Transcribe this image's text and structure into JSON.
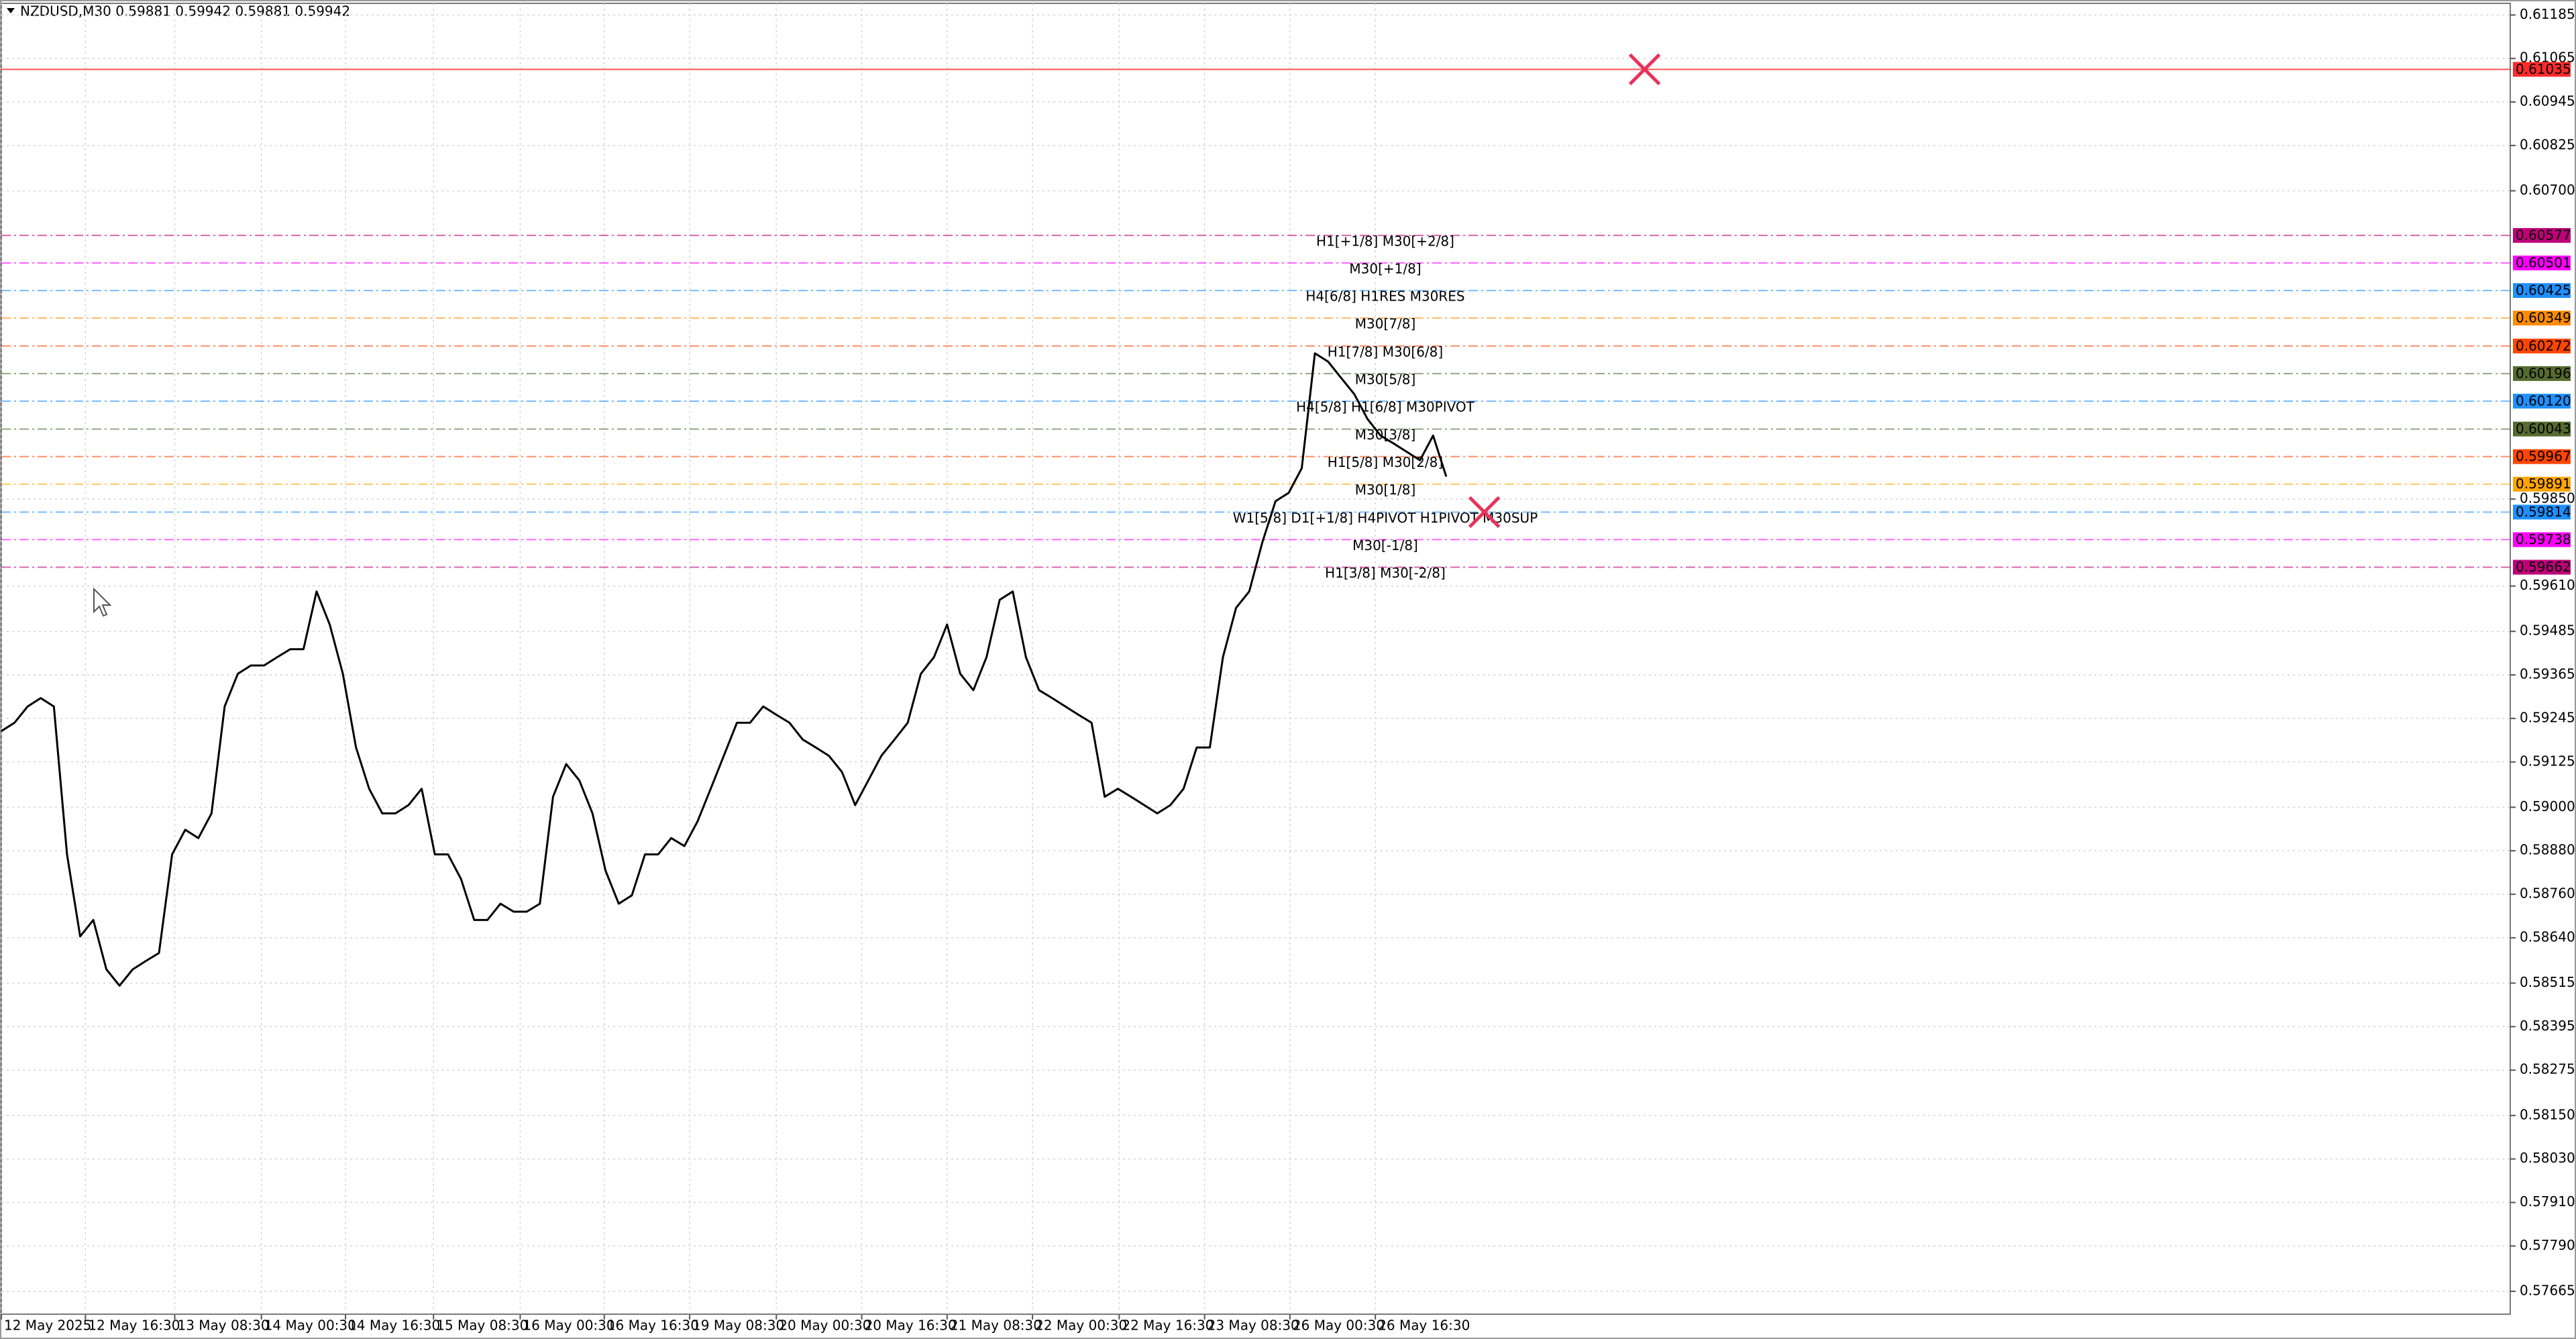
{
  "chart_data": {
    "type": "line",
    "title": "NZDUSD,M30  0.59881 0.59942 0.59881 0.59942",
    "xlim": [
      0,
      191
    ],
    "ylim": [
      0.57602,
      0.61217
    ],
    "grid": true,
    "xticks": [
      {
        "value": 0,
        "label": "12 May 2025"
      },
      {
        "value": 6.4,
        "label": "12 May 16:30"
      },
      {
        "value": 13.2,
        "label": "13 May 08:30"
      },
      {
        "value": 19.8,
        "label": "14 May 00:30"
      },
      {
        "value": 26.2,
        "label": "14 May 16:30"
      },
      {
        "value": 32.9,
        "label": "15 May 08:30"
      },
      {
        "value": 39.5,
        "label": "16 May 00:30"
      },
      {
        "value": 45.9,
        "label": "16 May 16:30"
      },
      {
        "value": 52.4,
        "label": "19 May 08:30"
      },
      {
        "value": 59,
        "label": "20 May 00:30"
      },
      {
        "value": 65.5,
        "label": "20 May 16:30"
      },
      {
        "value": 72,
        "label": "21 May 08:30"
      },
      {
        "value": 78.5,
        "label": "22 May 00:30"
      },
      {
        "value": 85.1,
        "label": "22 May 16:30"
      },
      {
        "value": 91.6,
        "label": "23 May 08:30"
      },
      {
        "value": 98.1,
        "label": "26 May 00:30"
      },
      {
        "value": 104.6,
        "label": "26 May 16:30"
      }
    ],
    "yticks": [
      {
        "value": 0.61185,
        "label": "0.61185"
      },
      {
        "value": 0.61065,
        "label": "0.61065"
      },
      {
        "value": 0.60945,
        "label": "0.60945"
      },
      {
        "value": 0.60825,
        "label": "0.60825"
      },
      {
        "value": 0.607,
        "label": "0.60700"
      },
      {
        "value": 0.5985,
        "label": "0.59850"
      },
      {
        "value": 0.5961,
        "label": "0.59610"
      },
      {
        "value": 0.59485,
        "label": "0.59485"
      },
      {
        "value": 0.59365,
        "label": "0.59365"
      },
      {
        "value": 0.59245,
        "label": "0.59245"
      },
      {
        "value": 0.59125,
        "label": "0.59125"
      },
      {
        "value": 0.59,
        "label": "0.59000"
      },
      {
        "value": 0.5888,
        "label": "0.58880"
      },
      {
        "value": 0.5876,
        "label": "0.58760"
      },
      {
        "value": 0.5864,
        "label": "0.58640"
      },
      {
        "value": 0.58515,
        "label": "0.58515"
      },
      {
        "value": 0.58395,
        "label": "0.58395"
      },
      {
        "value": 0.58275,
        "label": "0.58275"
      },
      {
        "value": 0.5815,
        "label": "0.58150"
      },
      {
        "value": 0.5803,
        "label": "0.58030"
      },
      {
        "value": 0.5791,
        "label": "0.57910"
      },
      {
        "value": 0.5779,
        "label": "0.57790"
      },
      {
        "value": 0.57665,
        "label": "0.57665"
      }
    ],
    "series": [
      {
        "name": "NZDUSD,M30",
        "color": "#000000",
        "values": [
          0.5921,
          0.59233,
          0.59278,
          0.59301,
          0.59278,
          0.5887,
          0.58644,
          0.58689,
          0.58553,
          0.58508,
          0.58553,
          0.58576,
          0.58598,
          0.5887,
          0.58938,
          0.58915,
          0.58983,
          0.59278,
          0.59368,
          0.59391,
          0.59391,
          0.59414,
          0.59436,
          0.59436,
          0.59595,
          0.59504,
          0.59368,
          0.59165,
          0.59051,
          0.58983,
          0.58983,
          0.59006,
          0.59051,
          0.5887,
          0.5887,
          0.58802,
          0.58689,
          0.58689,
          0.58734,
          0.58712,
          0.58712,
          0.58734,
          0.59029,
          0.59119,
          0.59074,
          0.58983,
          0.58825,
          0.58734,
          0.58757,
          0.5887,
          0.5887,
          0.58915,
          0.58893,
          0.58961,
          0.59051,
          0.59142,
          0.59233,
          0.59233,
          0.59278,
          0.59255,
          0.59233,
          0.59187,
          0.59165,
          0.59142,
          0.59097,
          0.59006,
          0.59074,
          0.59142,
          0.59187,
          0.59233,
          0.59368,
          0.59414,
          0.59504,
          0.59368,
          0.59323,
          0.59414,
          0.59572,
          0.59595,
          0.59414,
          0.59323,
          0.59301,
          0.59278,
          0.59255,
          0.59233,
          0.59029,
          0.59051,
          0.59029,
          0.59006,
          0.58983,
          0.59006,
          0.59051,
          0.59165,
          0.59165,
          0.59414,
          0.5955,
          0.59595,
          0.59731,
          0.59844,
          0.59867,
          0.59935,
          0.60252,
          0.60229,
          0.60184,
          0.60139,
          0.60071,
          0.60025,
          0.60003,
          0.5998,
          0.59957,
          0.60025,
          0.59912
        ]
      }
    ],
    "levels": [
      {
        "value": 0.61035,
        "value_label": "0.61035",
        "color": "#ff2a2a"
      },
      {
        "value": 0.60577,
        "value_label": "0.60577",
        "text": "H1[+1/8] M30[+2/8]",
        "color": "#c0007a"
      },
      {
        "value": 0.60501,
        "value_label": "0.60501",
        "text": "M30[+1/8]",
        "color": "#ff00ff"
      },
      {
        "value": 0.60425,
        "value_label": "0.60425",
        "text": "H4[6/8] H1RES M30RES",
        "color": "#1e90ff"
      },
      {
        "value": 0.60349,
        "value_label": "0.60349",
        "text": "M30[7/8]",
        "color": "#ff8c00"
      },
      {
        "value": 0.60272,
        "value_label": "0.60272",
        "text": "H1[7/8] M30[6/8]",
        "color": "#ff4500"
      },
      {
        "value": 0.60196,
        "value_label": "0.60196",
        "text": "M30[5/8]",
        "color": "#556b2f"
      },
      {
        "value": 0.6012,
        "value_label": "0.60120",
        "text": "H4[5/8] H1[6/8] M30PIVOT",
        "color": "#1e90ff"
      },
      {
        "value": 0.60043,
        "value_label": "0.60043",
        "text": "M30[3/8]",
        "color": "#556b2f"
      },
      {
        "value": 0.59967,
        "value_label": "0.59967",
        "text": "H1[5/8] M30[2/8]",
        "color": "#ff4500"
      },
      {
        "value": 0.59891,
        "value_label": "0.59891",
        "text": "M30[1/8]",
        "color": "#ffa500"
      },
      {
        "value": 0.59814,
        "value_label": "0.59814",
        "text": "W1[5/8] D1[+1/8] H4PIVOT H1PIVOT M30SUP",
        "color": "#1e90ff"
      },
      {
        "value": 0.59738,
        "value_label": "0.59738",
        "text": "M30[-1/8]",
        "color": "#ff00ff"
      },
      {
        "value": 0.59662,
        "value_label": "0.59662",
        "text": "H1[3/8] M30[-2/8]",
        "color": "#c0007a"
      }
    ],
    "markers": {
      "color": "#e8325a",
      "points": [
        {
          "x": 125.1,
          "y": 0.61035
        },
        {
          "x": 112.9,
          "y": 0.59814
        }
      ]
    }
  }
}
